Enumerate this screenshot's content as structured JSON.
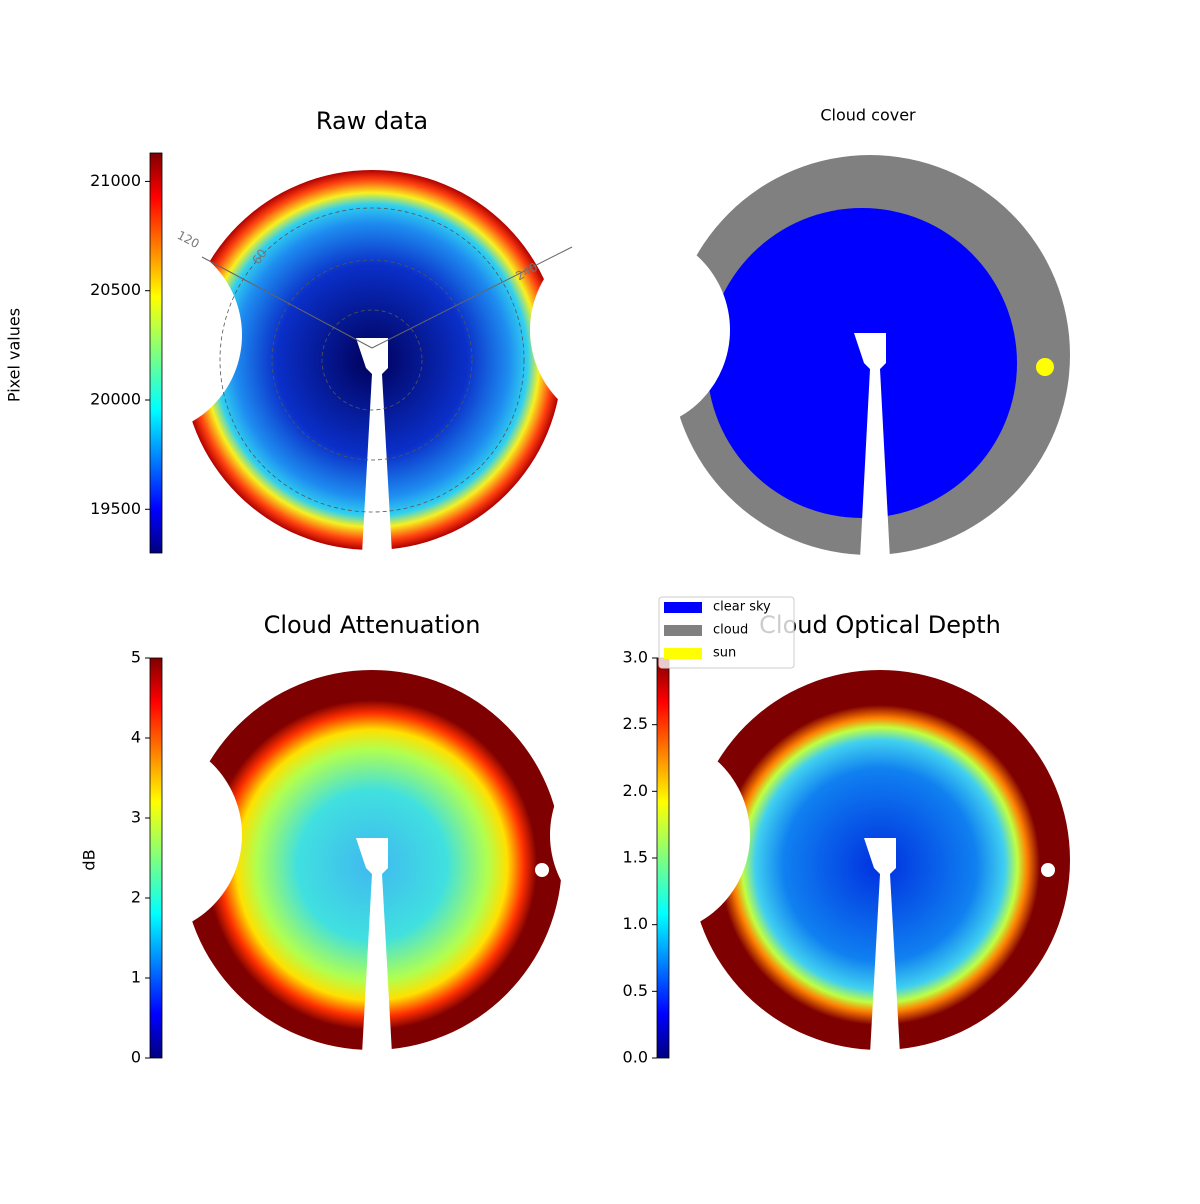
{
  "chart_data": [
    {
      "type": "heatmap",
      "title": "Raw data",
      "colormap": "jet",
      "colorbar_label": "Pixel values",
      "clim": [
        19300,
        21130
      ],
      "cticks": [
        19500,
        20000,
        20500,
        21000
      ],
      "polar_labels": [
        "120",
        "60",
        "240"
      ]
    },
    {
      "type": "category-map",
      "title": "Cloud cover",
      "series": [
        {
          "name": "clear sky",
          "color": "#0000ff"
        },
        {
          "name": "cloud",
          "color": "#808080"
        },
        {
          "name": "sun",
          "color": "#ffff00"
        }
      ]
    },
    {
      "type": "heatmap",
      "title": "Cloud Attenuation",
      "colormap": "jet",
      "colorbar_label": "dB",
      "clim": [
        0,
        5
      ],
      "cticks": [
        0,
        1,
        2,
        3,
        4,
        5
      ]
    },
    {
      "type": "heatmap",
      "title": "Cloud Optical Depth",
      "colormap": "jet",
      "clim": [
        0,
        3
      ],
      "cticks": [
        {
          "value": 0,
          "label": "0.0"
        },
        0.5,
        {
          "value": 1,
          "label": "1.0"
        },
        1.5,
        {
          "value": 2,
          "label": "2.0"
        },
        2.5,
        {
          "value": 3,
          "label": "3.0"
        }
      ]
    }
  ]
}
